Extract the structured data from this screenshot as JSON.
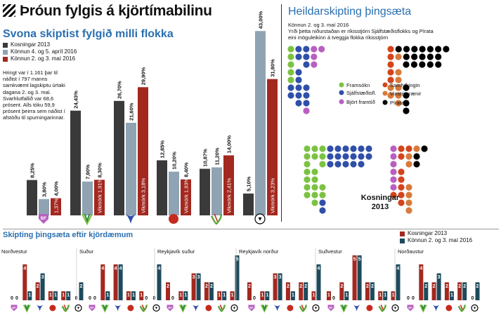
{
  "header": {
    "title": "Þróun fylgis á kjörtímabilinu"
  },
  "colors": {
    "election": "#3a3a3a",
    "poll1": "#8fa3b3",
    "poll2": "#a3281f",
    "accent": "#2a6fb0"
  },
  "top_chart": {
    "subtitle": "Svona skiptist fylgið milli flokka",
    "legend": [
      "Kosningar 2013",
      "Könnun 4. og 5. apríl 2016",
      "Könnun 2. og 3. maí 2016"
    ],
    "note": "Hringt var í 1.161 þar til náðist í 797 manns samkvæmt lagskiptu úrtaki dagana 2. og 3. maí. Svarhlutfallið var 68,6 prósent. Alls tóku 59,9 prósent þeirra sem náðist í afstöðu til spurningarinnar."
  },
  "chart_data": [
    {
      "type": "bar",
      "categories": [
        "BF",
        "Framsókn",
        "Sjálfstæðisfl.",
        "Björt framtíð",
        "Vinstri grænir",
        "Píratar"
      ],
      "series": [
        {
          "name": "Kosningar 2013",
          "values": [
            8.25,
            24.43,
            26.7,
            12.85,
            10.87,
            5.1
          ],
          "labels": [
            "8,25%",
            "24,43%",
            "26,70%",
            "12,85%",
            "10,87%",
            "5,10%"
          ]
        },
        {
          "name": "Könnun 4. og 5. apríl 2016",
          "values": [
            3.8,
            7.9,
            21.6,
            10.2,
            11.2,
            43.0
          ],
          "labels": [
            "3,80%",
            "7,90%",
            "21,60%",
            "10,20%",
            "11,20%",
            "43,00%"
          ]
        },
        {
          "name": "Könnun 2. og 3. maí 2016",
          "values": [
            4.0,
            8.3,
            29.9,
            8.4,
            14.0,
            31.8
          ],
          "labels": [
            "4,00%",
            "8,30%",
            "29,90%",
            "8,40%",
            "14,00%",
            "31,80%"
          ]
        }
      ],
      "margins": [
        "1,37%",
        "Vikmörk 1,91%",
        "Vikmörk 3,18%",
        "Vikmörk 1,93%",
        "Vikmörk 2,41%",
        "Vikmörk 3,23%"
      ],
      "ylim": [
        0,
        45
      ]
    },
    {
      "type": "bar",
      "title": "Skipting þingsæta eftir kjördæmum",
      "legend": [
        "Kosningar 2013",
        "Könnun 2. og 3. maí 2016"
      ],
      "districts": [
        {
          "name": "Norðvestur",
          "election": [
            0,
            4,
            2,
            1,
            1,
            0
          ],
          "poll": [
            0,
            1,
            3,
            1,
            1,
            2
          ]
        },
        {
          "name": "Suður",
          "election": [
            0,
            4,
            4,
            1,
            1,
            0
          ],
          "poll": [
            0,
            1,
            4,
            1,
            0,
            4
          ]
        },
        {
          "name": "Reykjavík suður",
          "election": [
            2,
            1,
            3,
            2,
            1,
            1
          ],
          "poll": [
            0,
            1,
            3,
            2,
            1,
            5
          ]
        },
        {
          "name": "Reykjavík norður",
          "election": [
            2,
            1,
            3,
            2,
            2,
            1
          ],
          "poll": [
            0,
            1,
            3,
            1,
            2,
            4
          ]
        },
        {
          "name": "Suðvestur",
          "election": [
            1,
            2,
            5,
            2,
            1,
            1
          ],
          "poll": [
            0,
            1,
            5,
            2,
            1,
            4
          ]
        },
        {
          "name": "Norðaustur",
          "election": [
            0,
            4,
            2,
            2,
            2,
            0
          ],
          "poll": [
            0,
            2,
            3,
            1,
            2,
            2
          ]
        }
      ],
      "ylim": [
        0,
        5
      ]
    }
  ],
  "parliament": {
    "title": "Heildarskipting þingsæta",
    "subtitle": "Könnun 2. og 3. maí 2016",
    "note": "Yrði þetta niðurstaðan er ríkisstjórn Sjálfstæðisflokks og Pírata eini möguleikinn á tveggja flokka ríkisstjórn",
    "legend": [
      "Framsókn",
      "Sjálfstæðisfl.",
      "Björt framtíð",
      "Samfylkingin",
      "Vinstri grænir",
      "Píratar"
    ],
    "party_colors": [
      "#7cc242",
      "#2f4fa8",
      "#b85fc0",
      "#d4441c",
      "#d77a3a",
      "#000000"
    ],
    "poll_seats": [
      5,
      15,
      5,
      5,
      8,
      21
    ],
    "election_label": "Kosningar 2013",
    "election_seats": [
      19,
      19,
      6,
      9,
      7,
      3
    ]
  },
  "party_icons": [
    "bf-icon",
    "framsokn-icon",
    "sjalfstaedis-icon",
    "samfylking-icon",
    "vg-icon",
    "piratar-icon"
  ]
}
